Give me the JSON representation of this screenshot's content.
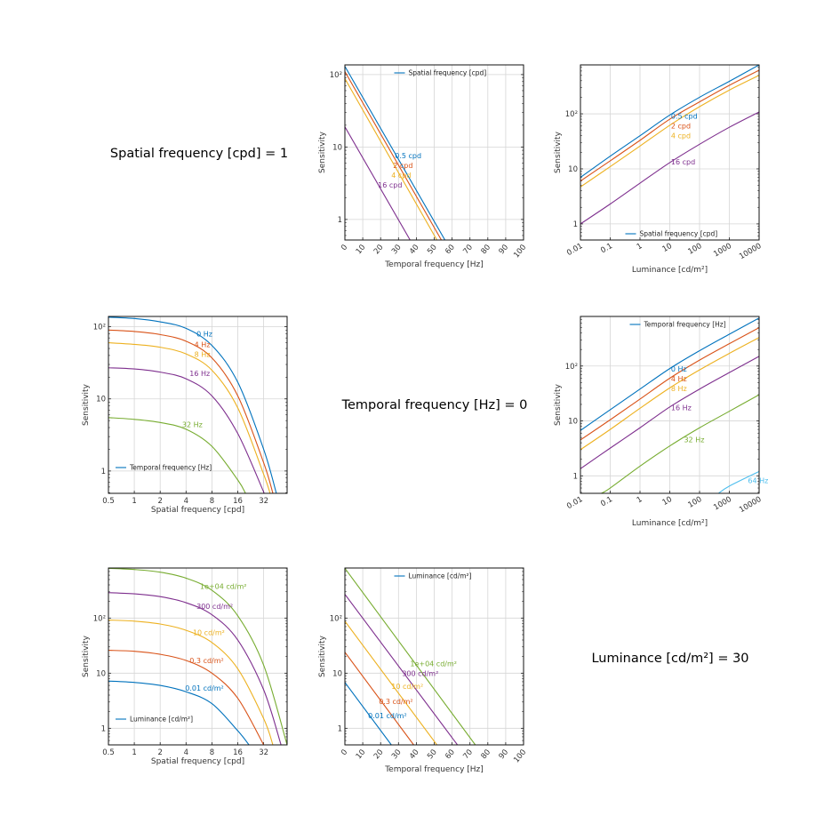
{
  "text_cells": [
    {
      "text": "Spatial frequency [cpd] = 1"
    },
    {
      "text": "Temporal frequency [Hz] = 0"
    },
    {
      "text": "Luminance [cd/m²] = 30"
    }
  ],
  "chart_data": [
    {
      "type": "line",
      "xlabel": "Temporal frequency [Hz]",
      "ylabel": "Sensitivity",
      "xscale": "linear",
      "yscale": "log",
      "xlim": [
        0,
        100
      ],
      "ylim": [
        0.52,
        136
      ],
      "xticks": [
        0,
        10,
        20,
        30,
        40,
        50,
        60,
        70,
        80,
        90,
        100
      ],
      "xticklabels": [
        "0",
        "10",
        "20",
        "30",
        "40",
        "50",
        "60",
        "70",
        "80",
        "90",
        "100"
      ],
      "yticks": [
        1,
        10,
        100
      ],
      "yticklabels": [
        "1",
        "10",
        "10²"
      ],
      "grid": true,
      "legend": {
        "title": "Spatial frequency [cpd]",
        "placement": "top-center"
      },
      "series": [
        {
          "name": "0.5 cpd",
          "color": "#0072BD",
          "x": [
            0,
            56
          ],
          "y": [
            130,
            0.52
          ],
          "label_at": [
            28,
            7.6
          ]
        },
        {
          "name": "2 cpd",
          "color": "#D95319",
          "x": [
            0,
            54
          ],
          "y": [
            110,
            0.52
          ],
          "label_at": [
            27,
            6.6
          ]
        },
        {
          "name": "4 cpd",
          "color": "#EDB120",
          "x": [
            0,
            51.5
          ],
          "y": [
            88,
            0.52
          ],
          "label_at": [
            26,
            5.9
          ]
        },
        {
          "name": "16 cpd",
          "color": "#7E2F8E",
          "x": [
            0,
            36.5
          ],
          "y": [
            19,
            0.52
          ],
          "label_at": [
            18.5,
            3.0
          ]
        }
      ]
    },
    {
      "type": "line",
      "xlabel": "Luminance [cd/m²]",
      "ylabel": "Sensitivity",
      "xscale": "log",
      "yscale": "log",
      "xlim": [
        0.01,
        10000
      ],
      "ylim": [
        0.51,
        775
      ],
      "xticks": [
        0.01,
        0.1,
        1,
        10,
        100,
        1000,
        10000
      ],
      "xticklabels": [
        "0.01",
        "0.1",
        "1",
        "10",
        "100",
        "1000",
        "10000"
      ],
      "yticks": [
        1,
        10,
        100
      ],
      "yticklabels": [
        "1",
        "10",
        "10²"
      ],
      "grid": true,
      "legend": {
        "title": "Spatial frequency [cpd]",
        "placement": "bottom-center"
      },
      "series": [
        {
          "name": "0.5 cpd",
          "color": "#0072BD",
          "x": [
            0.01,
            0.1,
            1,
            10,
            100,
            1000,
            10000
          ],
          "y": [
            7,
            17,
            40,
            95,
            200,
            390,
            775
          ],
          "label_at": [
            11,
            92
          ]
        },
        {
          "name": "2 cpd",
          "color": "#D95319",
          "x": [
            0.01,
            0.1,
            1,
            10,
            100,
            1000,
            10000
          ],
          "y": [
            6,
            14,
            33,
            80,
            165,
            330,
            620
          ],
          "label_at": [
            11,
            76
          ]
        },
        {
          "name": "4 cpd",
          "color": "#EDB120",
          "x": [
            0.01,
            0.1,
            1,
            10,
            100,
            1000,
            10000
          ],
          "y": [
            4.7,
            11,
            26,
            62,
            135,
            270,
            500
          ],
          "label_at": [
            11,
            60
          ]
        },
        {
          "name": "16 cpd",
          "color": "#7E2F8E",
          "x": [
            0.01,
            0.1,
            1,
            10,
            100,
            1000,
            10000
          ],
          "y": [
            1.0,
            2.3,
            5.5,
            13,
            28,
            57,
            108
          ],
          "label_at": [
            11,
            13.5
          ]
        }
      ]
    },
    {
      "type": "line",
      "xlabel": "Spatial frequency [cpd]",
      "ylabel": "Sensitivity",
      "xscale": "log2",
      "yscale": "log",
      "xlim": [
        0.5,
        60
      ],
      "ylim": [
        0.49,
        139
      ],
      "xticks": [
        0.5,
        1,
        2,
        4,
        8,
        16,
        32
      ],
      "xticklabels": [
        "0.5",
        "1",
        "2",
        "4",
        "8",
        "16",
        "32"
      ],
      "yticks": [
        1,
        10,
        100
      ],
      "yticklabels": [
        "1",
        "10",
        "10²"
      ],
      "grid": true,
      "legend": {
        "title": "Temporal frequency [Hz]",
        "placement": "bottom-left"
      },
      "series": [
        {
          "name": "0 Hz",
          "color": "#0072BD",
          "x": [
            0.5,
            1,
            2,
            4,
            8,
            16,
            32,
            45
          ],
          "y": [
            136,
            130,
            117,
            95,
            55,
            17,
            2,
            0.49
          ],
          "label_at": [
            5.3,
            80
          ]
        },
        {
          "name": "4 Hz",
          "color": "#D95319",
          "x": [
            0.5,
            1,
            2,
            4,
            8,
            16,
            32,
            41
          ],
          "y": [
            90,
            86,
            78,
            63,
            37,
            11,
            1.3,
            0.49
          ],
          "label_at": [
            5.0,
            57
          ]
        },
        {
          "name": "8 Hz",
          "color": "#EDB120",
          "x": [
            0.5,
            1,
            2,
            4,
            8,
            16,
            32,
            38
          ],
          "y": [
            60,
            57,
            52,
            42,
            25,
            7.5,
            0.9,
            0.49
          ],
          "label_at": [
            5.0,
            42
          ]
        },
        {
          "name": "16 Hz",
          "color": "#7E2F8E",
          "x": [
            0.5,
            1,
            2,
            4,
            8,
            16,
            32.5
          ],
          "y": [
            27,
            26,
            23.5,
            19,
            11,
            3.3,
            0.49
          ],
          "label_at": [
            4.4,
            22.5
          ]
        },
        {
          "name": "32 Hz",
          "color": "#77AC30",
          "x": [
            0.5,
            1,
            2,
            4,
            8,
            16,
            19.7
          ],
          "y": [
            5.5,
            5.2,
            4.7,
            3.8,
            2.2,
            0.75,
            0.49
          ],
          "label_at": [
            3.6,
            4.4
          ]
        }
      ]
    },
    {
      "type": "line",
      "xlabel": "Luminance [cd/m²]",
      "ylabel": "Sensitivity",
      "xscale": "log",
      "yscale": "log",
      "xlim": [
        0.01,
        10000
      ],
      "ylim": [
        0.48,
        800
      ],
      "xticks": [
        0.01,
        0.1,
        1,
        10,
        100,
        1000,
        10000
      ],
      "xticklabels": [
        "0.01",
        "0.1",
        "1",
        "10",
        "100",
        "1000",
        "10000"
      ],
      "yticks": [
        1,
        10,
        100
      ],
      "yticklabels": [
        "1",
        "10",
        "10²"
      ],
      "grid": true,
      "legend": {
        "title": "Temporal frequency [Hz]",
        "placement": "top-center"
      },
      "series": [
        {
          "name": "0 Hz",
          "color": "#0072BD",
          "x": [
            0.01,
            0.1,
            1,
            10,
            100,
            1000,
            10000
          ],
          "y": [
            6.7,
            16,
            38,
            90,
            190,
            380,
            750
          ],
          "label_at": [
            11,
            88
          ]
        },
        {
          "name": "4 Hz",
          "color": "#D95319",
          "x": [
            0.01,
            0.1,
            1,
            10,
            100,
            1000,
            10000
          ],
          "y": [
            4.5,
            10.5,
            25,
            60,
            128,
            255,
            500
          ],
          "label_at": [
            11,
            59
          ]
        },
        {
          "name": "8 Hz",
          "color": "#EDB120",
          "x": [
            0.01,
            0.1,
            1,
            10,
            100,
            1000,
            10000
          ],
          "y": [
            3,
            7,
            17,
            40,
            85,
            170,
            330
          ],
          "label_at": [
            11,
            39
          ]
        },
        {
          "name": "16 Hz",
          "color": "#7E2F8E",
          "x": [
            0.01,
            0.1,
            1,
            10,
            100,
            1000,
            10000
          ],
          "y": [
            1.35,
            3.2,
            7.5,
            18,
            38,
            76,
            150
          ],
          "label_at": [
            11,
            17.5
          ]
        },
        {
          "name": "32 Hz",
          "color": "#77AC30",
          "x": [
            0.05,
            0.1,
            1,
            10,
            100,
            1000,
            10000
          ],
          "y": [
            0.48,
            0.6,
            1.5,
            3.5,
            7.5,
            15,
            30
          ],
          "label_at": [
            30,
            4.6
          ]
        },
        {
          "name": "64 Hz",
          "color": "#4DBEEE",
          "x": [
            430,
            1000,
            10000
          ],
          "y": [
            0.48,
            0.65,
            1.2
          ],
          "label_at": [
            4200,
            0.82
          ]
        }
      ]
    },
    {
      "type": "line",
      "xlabel": "Spatial frequency [cpd]",
      "ylabel": "Sensitivity",
      "xscale": "log2",
      "yscale": "log",
      "xlim": [
        0.5,
        60
      ],
      "ylim": [
        0.5,
        810
      ],
      "xticks": [
        0.5,
        1,
        2,
        4,
        8,
        16,
        32
      ],
      "xticklabels": [
        "0.5",
        "1",
        "2",
        "4",
        "8",
        "16",
        "32"
      ],
      "yticks": [
        1,
        10,
        100
      ],
      "yticklabels": [
        "1",
        "10",
        "10²"
      ],
      "grid": true,
      "legend": {
        "title": "Luminance [cd/m²]",
        "placement": "bottom-left"
      },
      "series": [
        {
          "name": "1e+04 cd/m²",
          "color": "#77AC30",
          "x": [
            0.5,
            1,
            2,
            4,
            8,
            16,
            32,
            60
          ],
          "y": [
            800,
            760,
            680,
            530,
            320,
            110,
            14,
            0.5
          ],
          "label_at": [
            5.8,
            380
          ]
        },
        {
          "name": "300 cd/m²",
          "color": "#7E2F8E",
          "x": [
            0.5,
            1,
            2,
            4,
            8,
            16,
            32,
            51
          ],
          "y": [
            290,
            275,
            245,
            190,
            115,
            40,
            5,
            0.5
          ],
          "label_at": [
            5.3,
            165
          ]
        },
        {
          "name": "10 cd/m²",
          "color": "#EDB120",
          "x": [
            0.5,
            1,
            2,
            4,
            8,
            16,
            32,
            41
          ],
          "y": [
            92,
            88,
            78,
            60,
            36,
            12,
            1.5,
            0.5
          ],
          "label_at": [
            4.8,
            55
          ]
        },
        {
          "name": "0.3 cd/m²",
          "color": "#D95319",
          "x": [
            0.5,
            1,
            2,
            4,
            8,
            16,
            32
          ],
          "y": [
            26,
            25,
            22,
            17,
            10,
            3.5,
            0.5
          ],
          "label_at": [
            4.4,
            17
          ]
        },
        {
          "name": "0.01 cd/m²",
          "color": "#0072BD",
          "x": [
            0.5,
            1,
            2,
            4,
            8,
            16,
            21.6
          ],
          "y": [
            7.2,
            6.8,
            6,
            4.6,
            2.8,
            0.9,
            0.5
          ],
          "label_at": [
            3.9,
            5.4
          ]
        }
      ]
    },
    {
      "type": "line",
      "xlabel": "Temporal frequency [Hz]",
      "ylabel": "Sensitivity",
      "xscale": "linear",
      "yscale": "log",
      "xlim": [
        0,
        100
      ],
      "ylim": [
        0.5,
        810
      ],
      "xticks": [
        0,
        10,
        20,
        30,
        40,
        50,
        60,
        70,
        80,
        90,
        100
      ],
      "xticklabels": [
        "0",
        "10",
        "20",
        "30",
        "40",
        "50",
        "60",
        "70",
        "80",
        "90",
        "100"
      ],
      "yticks": [
        1,
        10,
        100
      ],
      "yticklabels": [
        "1",
        "10",
        "10²"
      ],
      "grid": true,
      "legend": {
        "title": "Luminance [cd/m²]",
        "placement": "top-center"
      },
      "series": [
        {
          "name": "1e+04 cd/m²",
          "color": "#77AC30",
          "x": [
            0,
            73
          ],
          "y": [
            800,
            0.5
          ],
          "label_at": [
            36.5,
            15
          ]
        },
        {
          "name": "300 cd/m²",
          "color": "#7E2F8E",
          "x": [
            0,
            63
          ],
          "y": [
            270,
            0.5
          ],
          "label_at": [
            32,
            10.5
          ]
        },
        {
          "name": "10 cd/m²",
          "color": "#EDB120",
          "x": [
            0,
            51.5
          ],
          "y": [
            88,
            0.5
          ],
          "label_at": [
            26,
            5.8
          ]
        },
        {
          "name": "0.3 cd/m²",
          "color": "#D95319",
          "x": [
            0,
            38.5
          ],
          "y": [
            24,
            0.5
          ],
          "label_at": [
            19,
            3.1
          ]
        },
        {
          "name": "0.01 cd/m²",
          "color": "#0072BD",
          "x": [
            0,
            26
          ],
          "y": [
            6.8,
            0.5
          ],
          "label_at": [
            13,
            1.7
          ]
        }
      ]
    }
  ]
}
